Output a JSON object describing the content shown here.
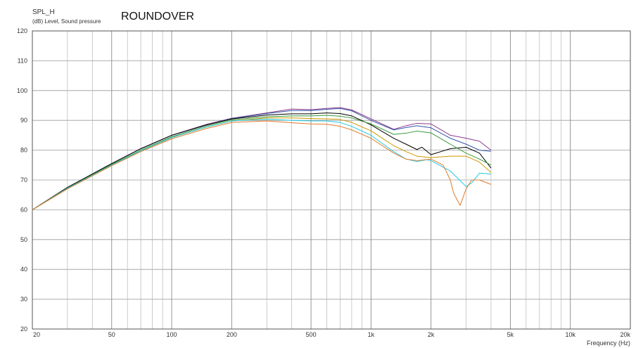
{
  "header": {
    "measurement": "SPL_H",
    "units_line": "(dB)  Level, Sound pressure",
    "title": "ROUNDOVER"
  },
  "chart_data": {
    "type": "line",
    "title": "ROUNDOVER",
    "ylabel": "(dB)  Level, Sound pressure",
    "xlabel": "Frequency   (Hz)",
    "x_scale": "log",
    "xlim": [
      20,
      20000
    ],
    "ylim": [
      20,
      120
    ],
    "y_ticks": [
      20,
      30,
      40,
      50,
      60,
      70,
      80,
      90,
      100,
      110,
      120
    ],
    "x_tick_labels": [
      {
        "value": 20,
        "label": "20"
      },
      {
        "value": 50,
        "label": "50"
      },
      {
        "value": 100,
        "label": "100"
      },
      {
        "value": 200,
        "label": "200"
      },
      {
        "value": 500,
        "label": "500"
      },
      {
        "value": 1000,
        "label": "1k"
      },
      {
        "value": 2000,
        "label": "2k"
      },
      {
        "value": 5000,
        "label": "5k"
      },
      {
        "value": 10000,
        "label": "10k"
      },
      {
        "value": 20000,
        "label": "20k"
      }
    ],
    "grid": true,
    "series": [
      {
        "color": "#8b3a8b",
        "x": [
          20,
          30,
          50,
          70,
          100,
          150,
          200,
          300,
          400,
          500,
          600,
          700,
          800,
          1000,
          1300,
          1500,
          1700,
          2000,
          2500,
          3000,
          3500,
          4000
        ],
        "y": [
          60,
          67.5,
          75.5,
          80.5,
          85,
          88.7,
          90.7,
          92.5,
          93.8,
          93.6,
          94,
          94.3,
          93.5,
          90.5,
          87,
          88.2,
          89,
          88.8,
          85,
          84,
          83,
          80
        ]
      },
      {
        "color": "#3355aa",
        "x": [
          20,
          30,
          50,
          70,
          100,
          150,
          200,
          300,
          400,
          500,
          600,
          700,
          800,
          1000,
          1300,
          1500,
          1700,
          2000,
          2500,
          3000,
          3500,
          4000
        ],
        "y": [
          60,
          67.5,
          75.5,
          80.5,
          85,
          88.5,
          90.6,
          92.3,
          93.3,
          93.3,
          93.7,
          94,
          93.2,
          90,
          86.8,
          87.6,
          88.2,
          87.5,
          84,
          82,
          80,
          79.6
        ]
      },
      {
        "color": "#000000",
        "x": [
          20,
          30,
          50,
          70,
          100,
          150,
          200,
          300,
          400,
          500,
          600,
          700,
          800,
          1000,
          1300,
          1500,
          1700,
          1800,
          2000,
          2500,
          3000,
          3500,
          4000
        ],
        "y": [
          60,
          67.5,
          75.5,
          80.5,
          85,
          88.5,
          90.5,
          91.8,
          92.2,
          92.2,
          92.5,
          92.3,
          91.5,
          88.5,
          84,
          82,
          80.2,
          81,
          78.5,
          80.5,
          81,
          79,
          74
        ]
      },
      {
        "color": "#3a9a3a",
        "x": [
          20,
          30,
          50,
          70,
          100,
          150,
          200,
          300,
          400,
          500,
          600,
          700,
          800,
          1000,
          1300,
          1500,
          1700,
          2000,
          2500,
          3000,
          3500,
          4000
        ],
        "y": [
          60,
          67.3,
          75.2,
          80,
          84.5,
          88.2,
          90.2,
          91.2,
          91.5,
          91.5,
          91.7,
          91.4,
          90.8,
          88.8,
          85.3,
          85.7,
          86.4,
          85.8,
          82,
          79,
          77,
          75
        ]
      },
      {
        "color": "#cc9900",
        "x": [
          20,
          30,
          50,
          70,
          100,
          150,
          200,
          300,
          400,
          500,
          600,
          700,
          800,
          1000,
          1300,
          1500,
          1700,
          2000,
          2500,
          3000,
          3500,
          4000
        ],
        "y": [
          60,
          67.2,
          75,
          79.8,
          84.2,
          87.8,
          89.8,
          90.8,
          90.8,
          90.6,
          90.5,
          90.3,
          89.3,
          86.5,
          81.5,
          79.5,
          78,
          77.5,
          78,
          78,
          76,
          72.5
        ]
      },
      {
        "color": "#22c8e0",
        "x": [
          20,
          30,
          50,
          70,
          100,
          150,
          200,
          300,
          400,
          500,
          600,
          700,
          800,
          1000,
          1300,
          1500,
          1700,
          1900,
          2000,
          2500,
          3000,
          3200,
          3500,
          4000
        ],
        "y": [
          60,
          67.2,
          75,
          79.8,
          84.2,
          87.8,
          89.8,
          90.4,
          90,
          89.8,
          89.8,
          89.3,
          88,
          85,
          79.5,
          77,
          76.2,
          76.8,
          76.5,
          73,
          67.8,
          69,
          72.3,
          72
        ]
      },
      {
        "color": "#e07a2a",
        "x": [
          20,
          30,
          50,
          70,
          100,
          150,
          200,
          300,
          400,
          500,
          600,
          700,
          800,
          1000,
          1300,
          1500,
          1700,
          2000,
          2300,
          2500,
          2600,
          2800,
          3000,
          3200,
          3500,
          4000
        ],
        "y": [
          60,
          67,
          74.8,
          79.5,
          83.8,
          87.3,
          89.3,
          89.8,
          89.2,
          88.8,
          88.7,
          88,
          86.8,
          84,
          79,
          77,
          76.5,
          77,
          75,
          70,
          65.5,
          61.5,
          67,
          70,
          70,
          68.5
        ]
      }
    ]
  }
}
